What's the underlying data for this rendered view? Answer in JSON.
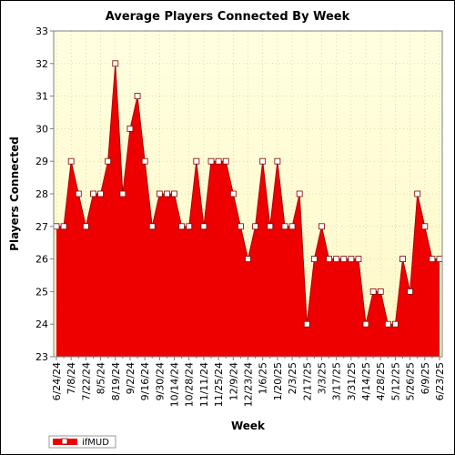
{
  "chart_data": {
    "type": "area",
    "title": "Average Players Connected By Week",
    "xlabel": "Week",
    "ylabel": "Players Connected",
    "ylim": [
      23,
      33
    ],
    "yticks": [
      23,
      24,
      25,
      26,
      27,
      28,
      29,
      30,
      31,
      32,
      33
    ],
    "xtick_labels": [
      "6/24/24",
      "7/8/24",
      "7/22/24",
      "8/5/24",
      "8/19/24",
      "9/2/24",
      "9/16/24",
      "9/30/24",
      "10/14/24",
      "10/28/24",
      "11/11/24",
      "11/25/24",
      "12/9/24",
      "12/23/24",
      "1/6/25",
      "1/20/25",
      "2/3/25",
      "2/17/25",
      "3/3/25",
      "3/17/25",
      "3/31/25",
      "4/14/25",
      "4/28/25",
      "5/12/25",
      "5/26/25",
      "6/9/25",
      "6/23/25"
    ],
    "grid": true,
    "legend_position": "bottom-left",
    "colors": {
      "fill": "#ee0000",
      "line": "#b00000",
      "plot_bg_top": "#ffffe0",
      "plot_bg_bottom": "#fff8c8",
      "marker_fill": "#ffffff"
    },
    "series": [
      {
        "name": "ifMUD",
        "x": [
          "6/24/24",
          "7/1/24",
          "7/8/24",
          "7/15/24",
          "7/22/24",
          "7/29/24",
          "8/5/24",
          "8/12/24",
          "8/19/24",
          "8/26/24",
          "9/2/24",
          "9/9/24",
          "9/16/24",
          "9/23/24",
          "9/30/24",
          "10/7/24",
          "10/14/24",
          "10/21/24",
          "10/28/24",
          "11/4/24",
          "11/11/24",
          "11/18/24",
          "11/25/24",
          "12/2/24",
          "12/9/24",
          "12/16/24",
          "12/23/24",
          "12/30/24",
          "1/6/25",
          "1/13/25",
          "1/20/25",
          "1/27/25",
          "2/3/25",
          "2/10/25",
          "2/17/25",
          "2/24/25",
          "3/3/25",
          "3/10/25",
          "3/17/25",
          "3/24/25",
          "3/31/25",
          "4/7/25",
          "4/14/25",
          "4/21/25",
          "4/28/25",
          "5/5/25",
          "5/12/25",
          "5/19/25",
          "5/26/25",
          "6/2/25",
          "6/9/25",
          "6/16/25",
          "6/23/25"
        ],
        "values": [
          27,
          27,
          29,
          28,
          27,
          28,
          28,
          29,
          32,
          28,
          30,
          31,
          29,
          27,
          28,
          28,
          28,
          27,
          27,
          29,
          27,
          29,
          29,
          29,
          28,
          27,
          26,
          27,
          29,
          27,
          29,
          27,
          27,
          28,
          24,
          26,
          27,
          26,
          26,
          26,
          26,
          26,
          24,
          25,
          25,
          24,
          24,
          26,
          25,
          28,
          27,
          26,
          26
        ]
      }
    ]
  }
}
